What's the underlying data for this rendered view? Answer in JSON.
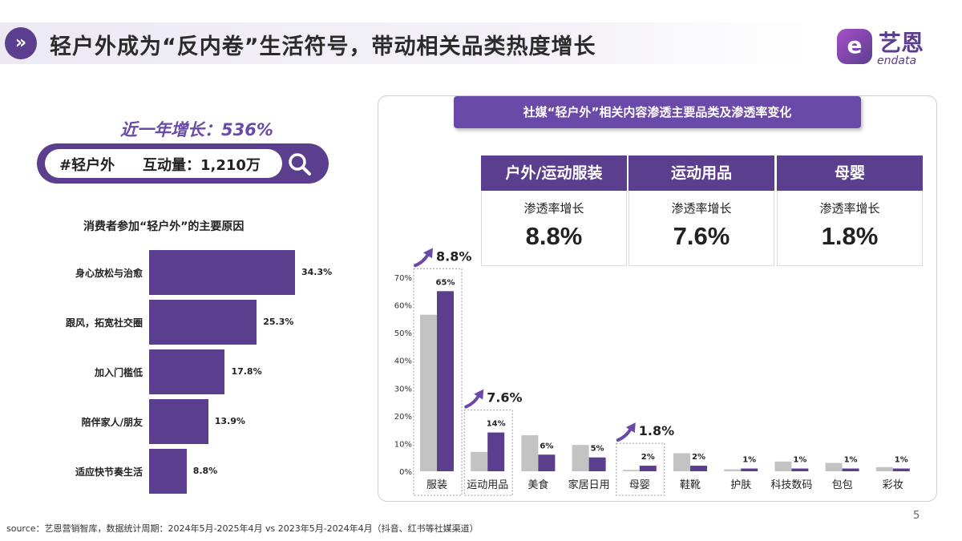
{
  "header": {
    "badge_icon": "double-chevron-right-icon",
    "title": "轻户外成为“反内卷”生活符号，带动相关品类热度增长"
  },
  "logo": {
    "cn": "艺恩",
    "en": "endata"
  },
  "left": {
    "growth": "近一年增长：536%",
    "search": {
      "tag": "#轻户外",
      "metric": "互动量：1,210万",
      "icon": "search-icon"
    },
    "reasons_title": "消费者参加“轻户外”的主要原因"
  },
  "right": {
    "title": "社媒“轻户外”相关内容渗透主要品类及渗透率变化",
    "cards": [
      {
        "head": "户外/运动服装",
        "sub": "渗透率增长",
        "value": "8.8%"
      },
      {
        "head": "运动用品",
        "sub": "渗透率增长",
        "value": "7.6%"
      },
      {
        "head": "母婴",
        "sub": "渗透率增长",
        "value": "1.8%"
      }
    ]
  },
  "chart_data": [
    {
      "type": "bar",
      "orientation": "horizontal",
      "categories": [
        "身心放松与治愈",
        "跟风，拓宽社交圈",
        "加入门槛低",
        "陪伴家人/朋友",
        "适应快节奏生活"
      ],
      "values": [
        34.3,
        25.3,
        17.8,
        13.9,
        8.8
      ],
      "labels": [
        "34.3%",
        "25.3%",
        "17.8%",
        "13.9%",
        "8.8%"
      ],
      "color": "#5b3f8e"
    },
    {
      "type": "bar",
      "categories": [
        "服装",
        "运动用品",
        "美食",
        "家居日用",
        "母婴",
        "鞋靴",
        "护肤",
        "科技数码",
        "包包",
        "彩妆"
      ],
      "series": [
        {
          "color": "#c3c3c3",
          "values": [
            56.5,
            7,
            13,
            9.5,
            0.5,
            6.5,
            0.7,
            3.5,
            3,
            1.5
          ]
        },
        {
          "color": "#5b3f8e",
          "values": [
            65,
            14,
            6,
            5,
            2,
            2,
            1,
            1,
            1,
            1
          ],
          "labels": [
            "65%",
            "14%",
            "6%",
            "5%",
            "2%",
            "2%",
            "1%",
            "1%",
            "1%",
            "1%"
          ]
        }
      ],
      "yticks": [
        "0%",
        "10%",
        "20%",
        "30%",
        "40%",
        "50%",
        "60%",
        "70%"
      ],
      "ylim": [
        0,
        70
      ],
      "highlights": [
        {
          "category": "服装",
          "growth": "8.8%"
        },
        {
          "category": "运动用品",
          "growth": "7.6%"
        },
        {
          "category": "母婴",
          "growth": "1.8%"
        }
      ],
      "arrow_icon": "up-right-arrow-icon"
    }
  ],
  "footer": {
    "source": "source：艺恩营销智库，数据统计周期：2024年5月-2025年4月 vs 2023年5月-2024年4月（抖音、红书等社媒渠道）",
    "page": "5"
  }
}
